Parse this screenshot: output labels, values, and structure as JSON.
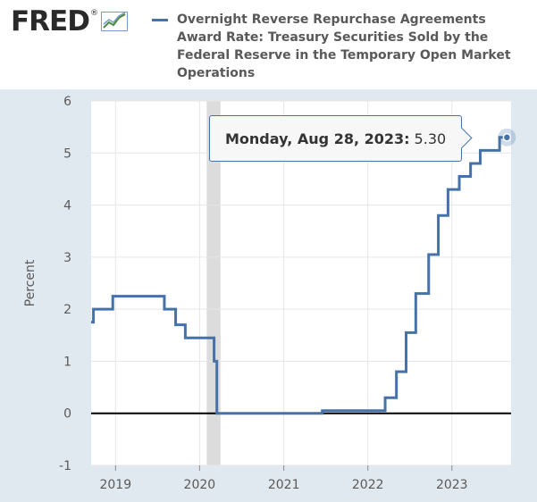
{
  "logo": {
    "text": "FRED",
    "reg": "®",
    "icon": "fred-line-graph-icon"
  },
  "legend": {
    "label": "Overnight Reverse Repurchase Agreements Award Rate: Treasury Securities Sold by the Federal Reserve in the Temporary Open Market Operations",
    "color": "#4572a7"
  },
  "tooltip": {
    "date": "Monday, Aug 28, 2023:",
    "value": "5.30"
  },
  "chart_data": {
    "type": "line",
    "title": "Overnight Reverse Repurchase Agreements Award Rate: Treasury Securities Sold by the Federal Reserve in the Temporary Open Market Operations",
    "xlabel": "",
    "ylabel": "Percent",
    "ylim": [
      -1,
      6
    ],
    "yticks": [
      -1,
      0,
      1,
      2,
      3,
      4,
      5,
      6
    ],
    "xlim": [
      "2018-09-17",
      "2023-09-15"
    ],
    "xticks": [
      {
        "label": "2019",
        "date": "2019-01-01"
      },
      {
        "label": "2020",
        "date": "2020-01-01"
      },
      {
        "label": "2021",
        "date": "2021-01-01"
      },
      {
        "label": "2022",
        "date": "2022-01-01"
      },
      {
        "label": "2023",
        "date": "2023-01-01"
      }
    ],
    "grid": true,
    "zero_line": true,
    "recession_shading": [
      [
        "2020-02-01",
        "2020-04-01"
      ]
    ],
    "series": [
      {
        "name": "Overnight Reverse Repurchase Agreements Award Rate: Treasury Securities Sold by the Federal Reserve in the Temporary Open Market Operations",
        "color": "#4572a7",
        "step": true,
        "points": [
          [
            "2018-09-17",
            1.75
          ],
          [
            "2018-09-27",
            2.0
          ],
          [
            "2018-12-20",
            2.25
          ],
          [
            "2019-08-01",
            2.0
          ],
          [
            "2019-09-19",
            1.7
          ],
          [
            "2019-10-31",
            1.45
          ],
          [
            "2020-03-04",
            1.0
          ],
          [
            "2020-03-16",
            0.0
          ],
          [
            "2021-06-17",
            0.05
          ],
          [
            "2022-03-17",
            0.3
          ],
          [
            "2022-05-05",
            0.8
          ],
          [
            "2022-06-16",
            1.55
          ],
          [
            "2022-07-28",
            2.3
          ],
          [
            "2022-09-22",
            3.05
          ],
          [
            "2022-11-03",
            3.8
          ],
          [
            "2022-12-15",
            4.3
          ],
          [
            "2023-02-02",
            4.55
          ],
          [
            "2023-03-23",
            4.8
          ],
          [
            "2023-05-04",
            5.05
          ],
          [
            "2023-07-27",
            5.3
          ],
          [
            "2023-08-28",
            5.3
          ]
        ]
      }
    ],
    "highlight": {
      "date": "2023-08-28",
      "value": 5.3
    }
  }
}
